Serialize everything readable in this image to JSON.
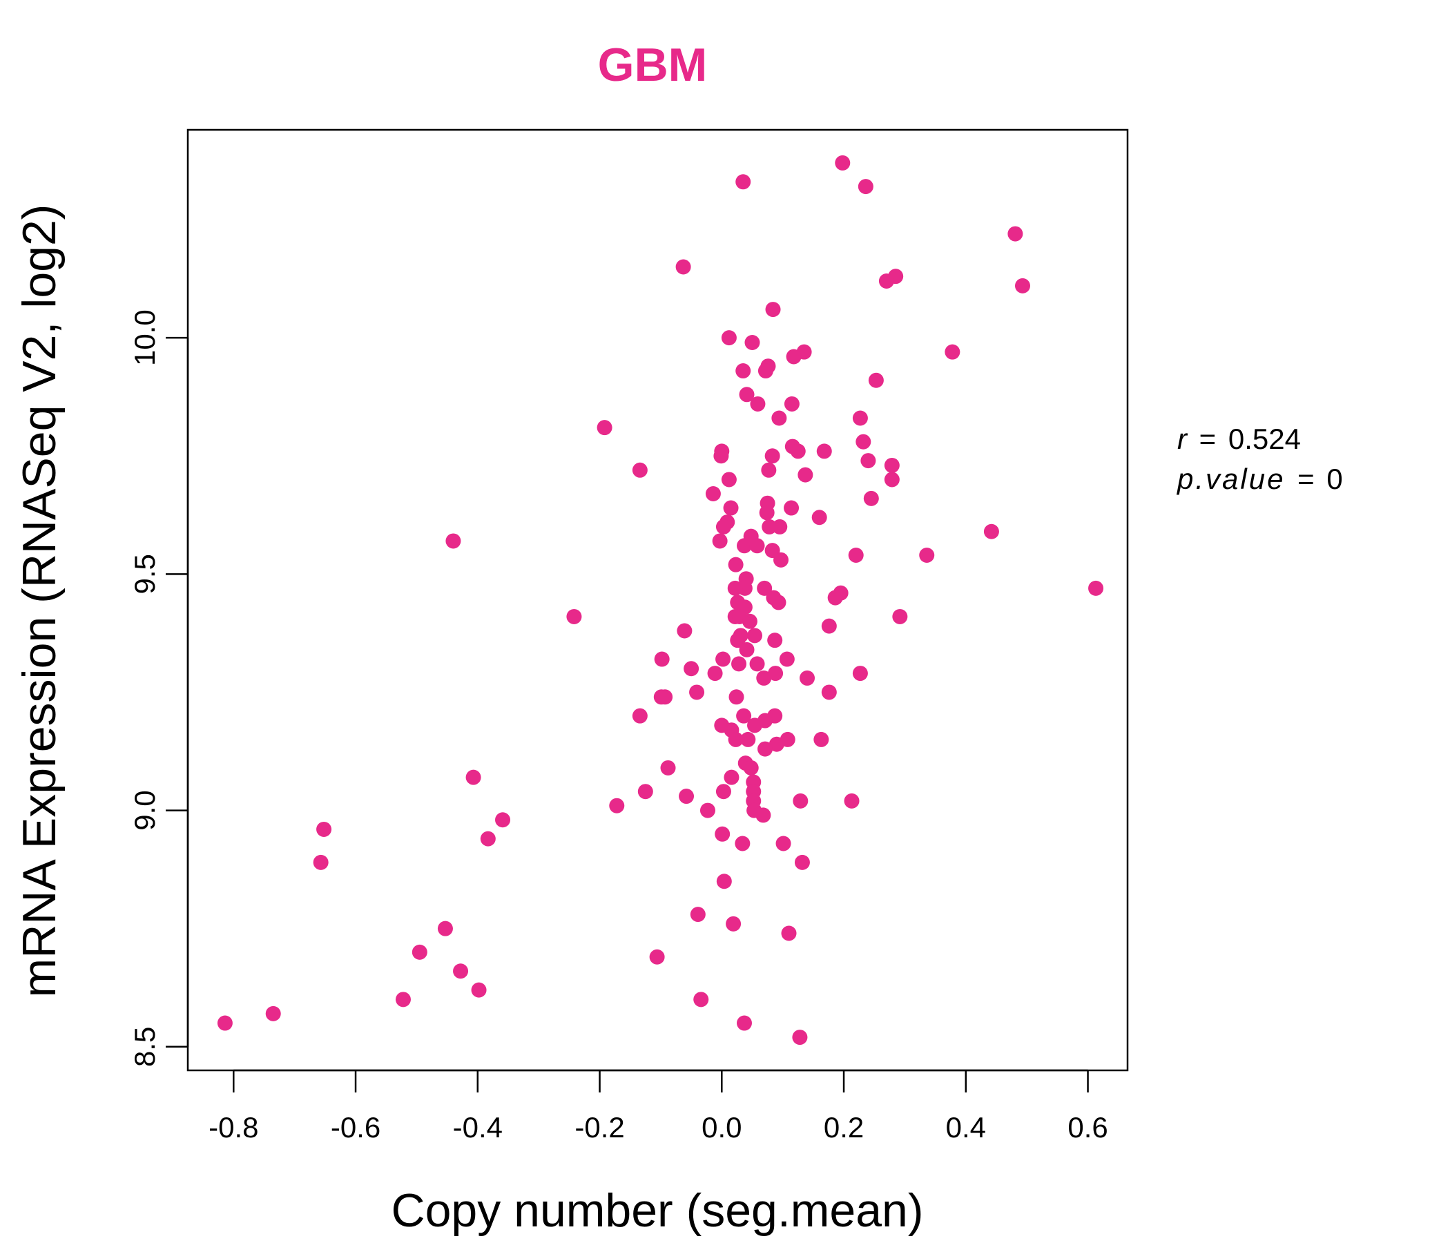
{
  "chart_data": {
    "type": "scatter",
    "title": "GBM",
    "xlabel": "Copy number (seg.mean)",
    "ylabel": "mRNA Expression (RNASeq V2, log2)",
    "xlim": [
      -0.875,
      0.665
    ],
    "ylim": [
      8.45,
      10.44
    ],
    "x_ticks": [
      -0.8,
      -0.6,
      -0.4,
      -0.2,
      0.0,
      0.2,
      0.4,
      0.6
    ],
    "x_tick_labels": [
      "-0.8",
      "-0.6",
      "-0.4",
      "-0.2",
      "0.0",
      "0.2",
      "0.4",
      "0.6"
    ],
    "y_ticks": [
      8.5,
      9.0,
      9.5,
      10.0
    ],
    "y_tick_labels": [
      "8.5",
      "9.0",
      "9.5",
      "10.0"
    ],
    "grid": false,
    "legend": "none",
    "point_color": "#E7298A",
    "annotation": {
      "r_label": "r",
      "r_value": "0.524",
      "p_label": "p.value",
      "p_value": "0",
      "equals": "="
    },
    "series": [
      {
        "points": [
          [
            0.035,
            10.33
          ],
          [
            0.198,
            10.37
          ],
          [
            0.236,
            10.32
          ],
          [
            0.481,
            10.22
          ],
          [
            -0.063,
            10.15
          ],
          [
            0.285,
            10.13
          ],
          [
            0.27,
            10.12
          ],
          [
            0.493,
            10.11
          ],
          [
            0.084,
            10.06
          ],
          [
            0.012,
            10.0
          ],
          [
            0.05,
            9.99
          ],
          [
            0.135,
            9.97
          ],
          [
            0.118,
            9.96
          ],
          [
            0.378,
            9.97
          ],
          [
            0.076,
            9.94
          ],
          [
            0.035,
            9.93
          ],
          [
            0.072,
            9.93
          ],
          [
            0.253,
            9.91
          ],
          [
            0.041,
            9.88
          ],
          [
            0.059,
            9.86
          ],
          [
            0.115,
            9.86
          ],
          [
            0.094,
            9.83
          ],
          [
            0.227,
            9.83
          ],
          [
            -0.192,
            9.81
          ],
          [
            0.232,
            9.78
          ],
          [
            0.116,
            9.77
          ],
          [
            0.125,
            9.76
          ],
          [
            0.168,
            9.76
          ],
          [
            0.0,
            9.76
          ],
          [
            -0.001,
            9.75
          ],
          [
            0.083,
            9.75
          ],
          [
            0.24,
            9.74
          ],
          [
            0.279,
            9.73
          ],
          [
            -0.134,
            9.72
          ],
          [
            0.077,
            9.72
          ],
          [
            0.137,
            9.71
          ],
          [
            0.012,
            9.7
          ],
          [
            0.279,
            9.7
          ],
          [
            -0.014,
            9.67
          ],
          [
            0.245,
            9.66
          ],
          [
            0.075,
            9.65
          ],
          [
            0.015,
            9.64
          ],
          [
            0.114,
            9.64
          ],
          [
            0.074,
            9.63
          ],
          [
            0.16,
            9.62
          ],
          [
            0.009,
            9.61
          ],
          [
            0.095,
            9.6
          ],
          [
            0.003,
            9.6
          ],
          [
            0.078,
            9.6
          ],
          [
            0.048,
            9.58
          ],
          [
            -0.003,
            9.57
          ],
          [
            0.037,
            9.56
          ],
          [
            -0.44,
            9.57
          ],
          [
            0.058,
            9.56
          ],
          [
            0.083,
            9.55
          ],
          [
            0.442,
            9.59
          ],
          [
            0.22,
            9.54
          ],
          [
            0.336,
            9.54
          ],
          [
            0.097,
            9.53
          ],
          [
            0.023,
            9.52
          ],
          [
            0.04,
            9.49
          ],
          [
            0.038,
            9.47
          ],
          [
            0.07,
            9.47
          ],
          [
            0.022,
            9.47
          ],
          [
            0.613,
            9.47
          ],
          [
            0.085,
            9.45
          ],
          [
            0.195,
            9.46
          ],
          [
            0.186,
            9.45
          ],
          [
            0.026,
            9.44
          ],
          [
            0.093,
            9.44
          ],
          [
            0.038,
            9.43
          ],
          [
            0.022,
            9.41
          ],
          [
            0.029,
            9.41
          ],
          [
            0.046,
            9.4
          ],
          [
            -0.242,
            9.41
          ],
          [
            0.292,
            9.41
          ],
          [
            0.176,
            9.39
          ],
          [
            -0.061,
            9.38
          ],
          [
            0.031,
            9.37
          ],
          [
            0.054,
            9.37
          ],
          [
            0.026,
            9.36
          ],
          [
            0.087,
            9.36
          ],
          [
            0.041,
            9.34
          ],
          [
            0.002,
            9.32
          ],
          [
            0.107,
            9.32
          ],
          [
            -0.098,
            9.32
          ],
          [
            0.028,
            9.31
          ],
          [
            0.058,
            9.31
          ],
          [
            -0.05,
            9.3
          ],
          [
            -0.011,
            9.29
          ],
          [
            0.088,
            9.29
          ],
          [
            0.069,
            9.28
          ],
          [
            0.227,
            9.29
          ],
          [
            0.14,
            9.28
          ],
          [
            -0.041,
            9.25
          ],
          [
            0.176,
            9.25
          ],
          [
            -0.099,
            9.24
          ],
          [
            -0.093,
            9.24
          ],
          [
            0.024,
            9.24
          ],
          [
            0.087,
            9.2
          ],
          [
            -0.134,
            9.2
          ],
          [
            0.036,
            9.2
          ],
          [
            0.071,
            9.19
          ],
          [
            0.054,
            9.18
          ],
          [
            0.0,
            9.18
          ],
          [
            0.016,
            9.17
          ],
          [
            0.023,
            9.15
          ],
          [
            0.043,
            9.15
          ],
          [
            0.108,
            9.15
          ],
          [
            0.163,
            9.15
          ],
          [
            0.09,
            9.14
          ],
          [
            0.071,
            9.13
          ],
          [
            0.039,
            9.1
          ],
          [
            0.048,
            9.09
          ],
          [
            -0.088,
            9.09
          ],
          [
            0.016,
            9.07
          ],
          [
            0.052,
            9.06
          ],
          [
            0.003,
            9.04
          ],
          [
            0.052,
            9.04
          ],
          [
            -0.125,
            9.04
          ],
          [
            -0.058,
            9.03
          ],
          [
            0.052,
            9.02
          ],
          [
            0.129,
            9.02
          ],
          [
            -0.172,
            9.01
          ],
          [
            0.213,
            9.02
          ],
          [
            -0.023,
            9.0
          ],
          [
            0.053,
            9.0
          ],
          [
            0.068,
            8.99
          ],
          [
            -0.359,
            8.98
          ],
          [
            0.001,
            8.95
          ],
          [
            -0.383,
            8.94
          ],
          [
            0.034,
            8.93
          ],
          [
            0.101,
            8.93
          ],
          [
            0.132,
            8.89
          ],
          [
            -0.652,
            8.96
          ],
          [
            -0.657,
            8.89
          ],
          [
            0.004,
            8.85
          ],
          [
            -0.039,
            8.78
          ],
          [
            0.019,
            8.76
          ],
          [
            0.11,
            8.74
          ],
          [
            -0.453,
            8.75
          ],
          [
            -0.106,
            8.69
          ],
          [
            -0.495,
            8.7
          ],
          [
            -0.428,
            8.66
          ],
          [
            -0.398,
            8.62
          ],
          [
            -0.034,
            8.6
          ],
          [
            -0.522,
            8.6
          ],
          [
            0.037,
            8.55
          ],
          [
            -0.735,
            8.57
          ],
          [
            -0.814,
            8.55
          ],
          [
            0.128,
            8.52
          ],
          [
            -0.407,
            9.07
          ]
        ]
      }
    ]
  }
}
